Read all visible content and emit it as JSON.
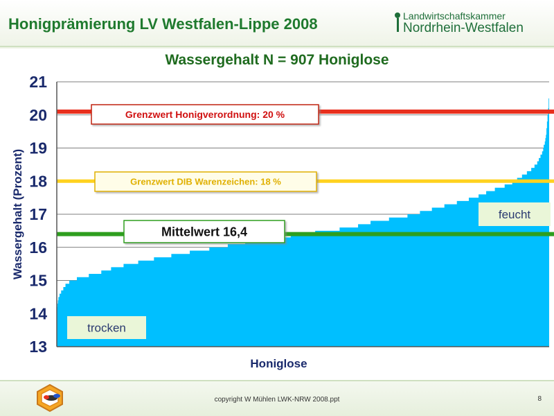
{
  "header": {
    "title": "Honigprämierung LV Westfalen-Lippe 2008",
    "logo_line1": "Landwirtschaftskammer",
    "logo_line2": "Nordrhein-Westfalen"
  },
  "colors": {
    "fill": "#00bfff",
    "limit_honey": "#e8301e",
    "limit_dib": "#ffd21f",
    "mean": "#2e9e1e",
    "text_dark": "#1a2a6c",
    "title_green": "#1f6b1f"
  },
  "chart_data": {
    "type": "area",
    "title": "Wassergehalt N = 907 Honiglose",
    "xlabel": "Honiglose",
    "ylabel": "Wassergehalt (Prozent)",
    "ylim": [
      13,
      21
    ],
    "yticks": [
      "13",
      "14",
      "15",
      "16",
      "17",
      "18",
      "19",
      "20",
      "21"
    ],
    "grid": true,
    "n": 907,
    "quantiles": {
      "p": [
        0,
        0.003,
        0.01,
        0.02,
        0.03,
        0.05,
        0.08,
        0.12,
        0.18,
        0.25,
        0.33,
        0.4,
        0.45,
        0.5,
        0.55,
        0.6,
        0.65,
        0.7,
        0.75,
        0.8,
        0.85,
        0.88,
        0.9,
        0.92,
        0.94,
        0.96,
        0.975,
        0.985,
        0.993,
        0.997,
        1.0
      ],
      "values": [
        14.2,
        14.5,
        14.7,
        14.9,
        15.0,
        15.1,
        15.2,
        15.4,
        15.6,
        15.8,
        16.0,
        16.2,
        16.3,
        16.4,
        16.5,
        16.6,
        16.8,
        16.9,
        17.1,
        17.3,
        17.5,
        17.7,
        17.8,
        17.9,
        18.1,
        18.3,
        18.5,
        18.8,
        19.2,
        19.8,
        20.5
      ]
    },
    "reference_lines": [
      {
        "label": "Grenzwert  Honigverordnung: 20 %",
        "value": 20.1
      },
      {
        "label": "Grenzwert  DIB Warenzeichen: 18 %",
        "value": 18.0
      },
      {
        "label": "Mittelwert 16,4",
        "value": 16.4
      }
    ],
    "annotations": [
      "trocken",
      "feucht"
    ]
  },
  "footer": {
    "copyright": "copyright W Mühlen LWK-NRW 2008.ppt",
    "page_number": "8"
  }
}
